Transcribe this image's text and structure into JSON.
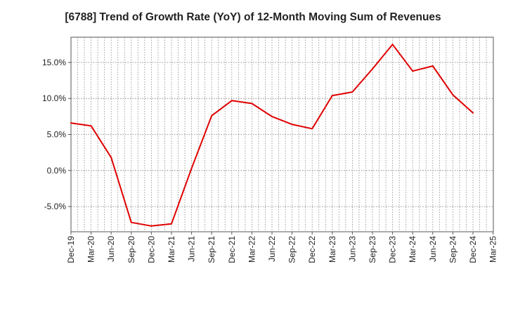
{
  "chart_data": {
    "type": "line",
    "title": "[6788]  Trend of Growth Rate (YoY) of 12-Month Moving Sum of Revenues",
    "xlabel": "",
    "ylabel": "",
    "x_ticks": [
      "Dec-19",
      "Mar-20",
      "Jun-20",
      "Sep-20",
      "Dec-20",
      "Mar-21",
      "Jun-21",
      "Sep-21",
      "Dec-21",
      "Mar-22",
      "Jun-22",
      "Sep-22",
      "Dec-22",
      "Mar-23",
      "Jun-23",
      "Sep-23",
      "Dec-23",
      "Mar-24",
      "Jun-24",
      "Sep-24",
      "Dec-24",
      "Mar-25"
    ],
    "y_ticks": [
      "-5.0%",
      "0.0%",
      "5.0%",
      "10.0%",
      "15.0%"
    ],
    "y_tick_values": [
      -5,
      0,
      5,
      10,
      15
    ],
    "ylim": [
      -8.5,
      18.5
    ],
    "grid": true,
    "line_color": "#e00000",
    "series": [
      {
        "x": [
          "Dec-19",
          "Mar-20",
          "Jun-20",
          "Sep-20",
          "Dec-20",
          "Mar-21",
          "Jun-21",
          "Sep-21",
          "Dec-21",
          "Mar-22",
          "Jun-22",
          "Sep-22",
          "Dec-22",
          "Mar-23",
          "Jun-23",
          "Sep-23",
          "Dec-23",
          "Mar-24",
          "Jun-24",
          "Sep-24",
          "Dec-24"
        ],
        "values": [
          6.6,
          6.2,
          1.8,
          -7.2,
          -7.7,
          -7.4,
          0.3,
          7.6,
          9.7,
          9.3,
          7.5,
          6.4,
          5.8,
          10.4,
          10.9,
          14.1,
          17.5,
          13.8,
          14.5,
          10.5,
          8.0
        ]
      }
    ]
  }
}
